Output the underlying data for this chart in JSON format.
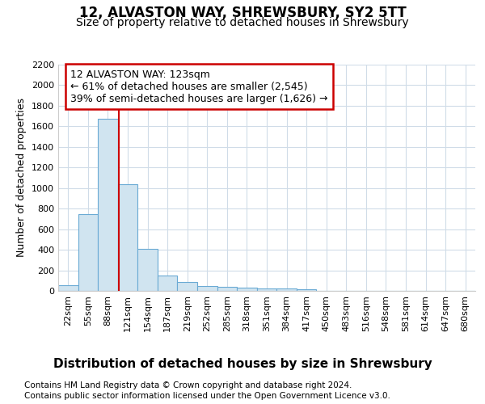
{
  "title": "12, ALVASTON WAY, SHREWSBURY, SY2 5TT",
  "subtitle": "Size of property relative to detached houses in Shrewsbury",
  "xlabel": "Distribution of detached houses by size in Shrewsbury",
  "ylabel": "Number of detached properties",
  "bin_labels": [
    "22sqm",
    "55sqm",
    "88sqm",
    "121sqm",
    "154sqm",
    "187sqm",
    "219sqm",
    "252sqm",
    "285sqm",
    "318sqm",
    "351sqm",
    "384sqm",
    "417sqm",
    "450sqm",
    "483sqm",
    "516sqm",
    "548sqm",
    "581sqm",
    "614sqm",
    "647sqm",
    "680sqm"
  ],
  "bar_values": [
    55,
    745,
    1670,
    1035,
    410,
    150,
    85,
    48,
    40,
    30,
    20,
    20,
    15,
    0,
    0,
    0,
    0,
    0,
    0,
    0,
    0
  ],
  "bar_color": "#d0e4f0",
  "bar_edgecolor": "#6aaad4",
  "marker_line_color": "#cc0000",
  "marker_bin_index": 3,
  "annotation_line1": "12 ALVASTON WAY: 123sqm",
  "annotation_line2": "← 61% of detached houses are smaller (2,545)",
  "annotation_line3": "39% of semi-detached houses are larger (1,626) →",
  "annotation_box_edgecolor": "#cc0000",
  "ylim": [
    0,
    2200
  ],
  "yticks": [
    0,
    200,
    400,
    600,
    800,
    1000,
    1200,
    1400,
    1600,
    1800,
    2000,
    2200
  ],
  "footer_line1": "Contains HM Land Registry data © Crown copyright and database right 2024.",
  "footer_line2": "Contains public sector information licensed under the Open Government Licence v3.0.",
  "background_color": "#ffffff",
  "plot_bg_color": "#ffffff",
  "grid_color": "#d0dce8",
  "title_fontsize": 12,
  "subtitle_fontsize": 10,
  "ylabel_fontsize": 9,
  "xlabel_fontsize": 11,
  "tick_fontsize": 8,
  "annotation_fontsize": 9,
  "footer_fontsize": 7.5
}
